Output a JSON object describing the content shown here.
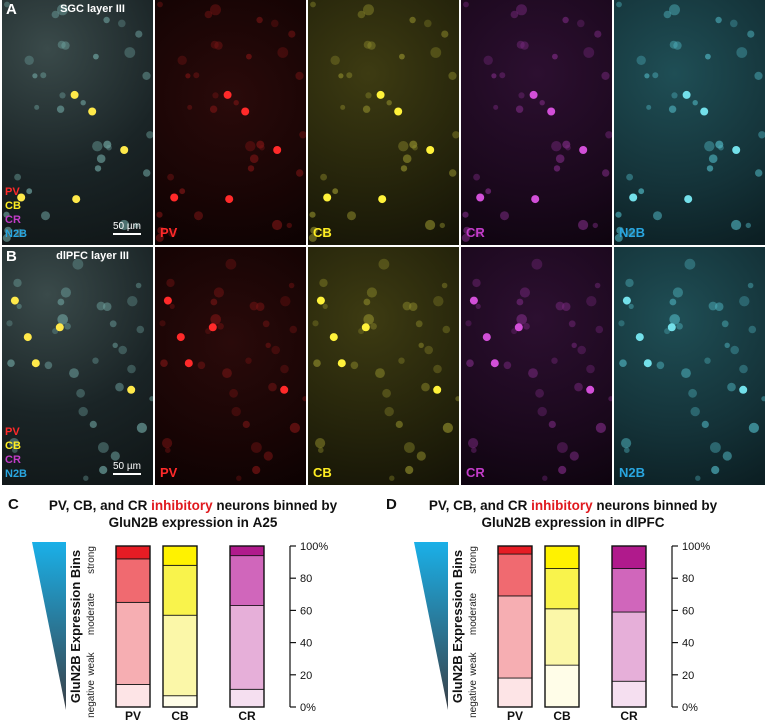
{
  "panels": {
    "A": {
      "letter": "A",
      "region_label": "SGC layer III",
      "scale_label": "50 µm"
    },
    "B": {
      "letter": "B",
      "region_label": "dlPFC layer III",
      "scale_label": "50 µm"
    }
  },
  "channels": [
    {
      "id": "PV",
      "color": "#ff2a2a"
    },
    {
      "id": "CB",
      "color": "#ffee22"
    },
    {
      "id": "CR",
      "color": "#c23cc8"
    },
    {
      "id": "N2B",
      "color": "#29a6e0"
    }
  ],
  "chart_data": [
    {
      "type": "bar",
      "panel": "C",
      "title_line1_pre": "PV, CB, and CR ",
      "title_highlight": "inhibitory",
      "title_line1_post": " neurons binned by",
      "title_line2_pre": "GluN2B expression in ",
      "title_line2_bold": "A25",
      "ylabel": "GluN2B Expression Bins",
      "bin_labels": [
        "negative",
        "weak",
        "moderate",
        "strong"
      ],
      "categories": [
        "PV",
        "CB",
        "CR"
      ],
      "y_ticks": [
        "0%",
        "20",
        "40",
        "60",
        "80",
        "100%"
      ],
      "ylim": [
        0,
        100
      ],
      "stacks": {
        "PV": [
          14,
          51,
          27,
          8
        ],
        "CB": [
          7,
          50,
          31,
          12
        ],
        "CR": [
          11,
          52,
          31,
          6
        ]
      }
    },
    {
      "type": "bar",
      "panel": "D",
      "title_line1_pre": "PV, CB, and CR ",
      "title_highlight": "inhibitory",
      "title_line1_post": " neurons binned by",
      "title_line2_pre": "GluN2B expression in ",
      "title_line2_bold": "dlPFC",
      "ylabel": "GluN2B Expression Bins",
      "bin_labels": [
        "negative",
        "weak",
        "moderate",
        "strong"
      ],
      "categories": [
        "PV",
        "CB",
        "CR"
      ],
      "y_ticks": [
        "0%",
        "20",
        "40",
        "60",
        "80",
        "100%"
      ],
      "ylim": [
        0,
        100
      ],
      "stacks": {
        "PV": [
          18,
          51,
          26,
          5
        ],
        "CB": [
          26,
          35,
          25,
          14
        ],
        "CR": [
          16,
          43,
          27,
          14
        ]
      }
    }
  ],
  "bin_colors": {
    "PV": [
      "#fde4e6",
      "#f6aeb2",
      "#f06a70",
      "#e61c24"
    ],
    "CB": [
      "#fffde8",
      "#fbf7a8",
      "#f9f34c",
      "#fff200"
    ],
    "CR": [
      "#f5dff0",
      "#e6afd9",
      "#d066bb",
      "#b01a8c"
    ]
  }
}
